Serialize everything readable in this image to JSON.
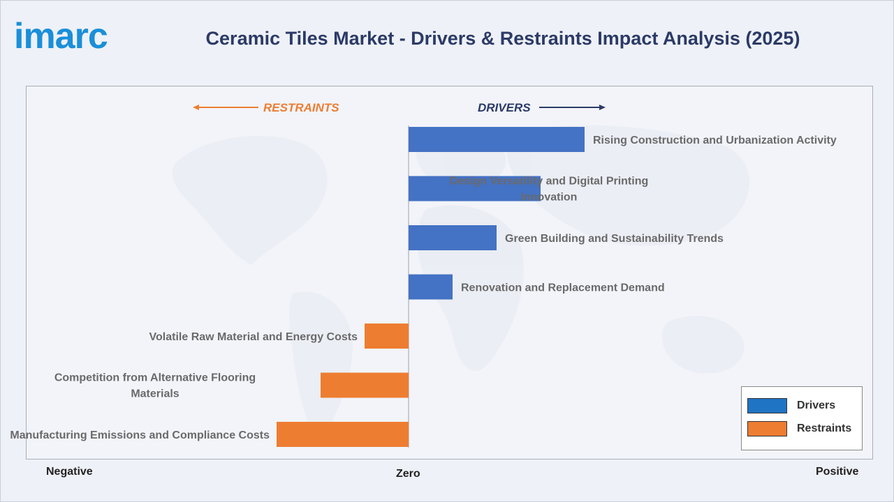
{
  "header": {
    "logo_text": "imarc",
    "title": "Ceramic Tiles Market - Drivers & Restraints Impact Analysis (2025)"
  },
  "directions": {
    "restraints": "RESTRAINTS",
    "drivers": "DRIVERS"
  },
  "axis": {
    "negative": "Negative",
    "zero": "Zero",
    "positive": "Positive"
  },
  "legend": {
    "drivers_label": "Drivers",
    "restraints_label": "Restraints"
  },
  "colors": {
    "drivers": "#4472c4",
    "restraints": "#ed7d31",
    "drivers_legend": "#1f74c4",
    "title": "#2b3a67",
    "logo": "#1a8fd9"
  },
  "chart_data": {
    "type": "bar",
    "orientation": "horizontal",
    "title": "Ceramic Tiles Market - Drivers & Restraints Impact Analysis (2025)",
    "xlabel": "",
    "ylabel": "",
    "xlim": [
      -1,
      1
    ],
    "legend_position": "bottom-right",
    "grid": false,
    "series": [
      {
        "name": "Drivers",
        "items": [
          {
            "label": "Rising Construction and Urbanization Activity",
            "value": 0.4
          },
          {
            "label": "Design Versatility and Digital Printing Innovation",
            "value": 0.3
          },
          {
            "label": "Green Building and Sustainability Trends",
            "value": 0.2
          },
          {
            "label": "Renovation and Replacement Demand",
            "value": 0.1
          }
        ]
      },
      {
        "name": "Restraints",
        "items": [
          {
            "label": "Volatile Raw Material and Energy Costs",
            "value": -0.1
          },
          {
            "label": "Competition from Alternative Flooring Materials",
            "value": -0.2
          },
          {
            "label": "Manufacturing Emissions and Compliance Costs",
            "value": -0.3
          }
        ]
      }
    ]
  }
}
